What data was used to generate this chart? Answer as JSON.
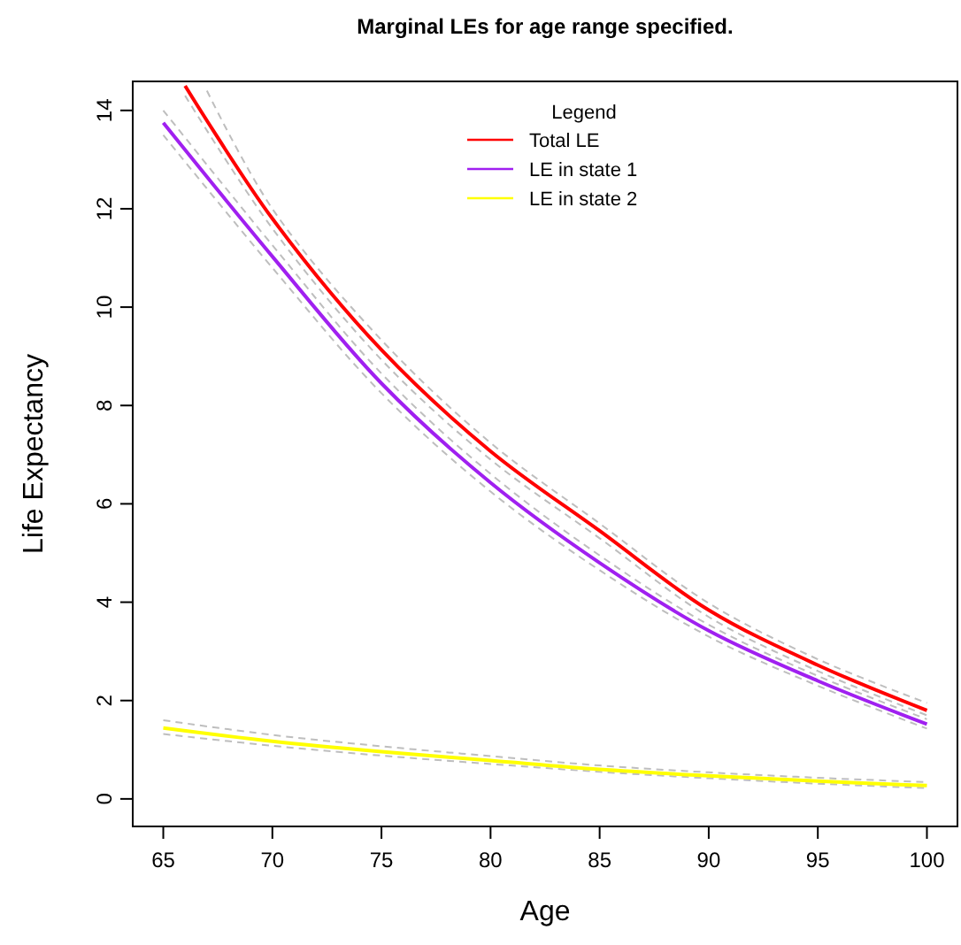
{
  "chart_data": {
    "type": "line",
    "title": "Marginal LEs for age range specified.",
    "xlabel": "Age",
    "ylabel": "Life Expectancy",
    "legend_title": "Legend",
    "legend": "top",
    "line_style": "solid",
    "xlim": [
      63.6,
      101.4
    ],
    "xticks": [
      65,
      70,
      75,
      80,
      85,
      90,
      95,
      100
    ],
    "ylim": [
      -0.56,
      14.59
    ],
    "yticks": [
      0,
      2,
      4,
      6,
      8,
      10,
      12,
      14
    ],
    "series": [
      {
        "color": "#bebebe",
        "line_style": "dashed",
        "x": [
          66,
          70,
          75,
          80,
          85,
          90,
          95,
          100
        ],
        "values": [
          14.3,
          11.6,
          8.93,
          6.9,
          5.3,
          3.7,
          2.6,
          1.7
        ]
      },
      {
        "color": "#bebebe",
        "line_style": "dashed",
        "x": [
          67,
          70,
          75,
          80,
          85,
          90,
          95,
          100
        ],
        "values": [
          14.4,
          12.0,
          9.33,
          7.24,
          5.6,
          3.98,
          2.84,
          1.95
        ]
      },
      {
        "color": "#bebebe",
        "line_style": "dashed",
        "x": [
          65,
          70,
          75,
          80,
          85,
          90,
          95,
          100
        ],
        "values": [
          13.5,
          10.8,
          8.25,
          6.25,
          4.65,
          3.3,
          2.3,
          1.43
        ]
      },
      {
        "color": "#bebebe",
        "line_style": "dashed",
        "x": [
          65,
          70,
          75,
          80,
          85,
          90,
          95,
          100
        ],
        "values": [
          14.0,
          11.26,
          8.65,
          6.61,
          4.95,
          3.54,
          2.5,
          1.62
        ]
      },
      {
        "color": "#bebebe",
        "line_style": "dashed",
        "x": [
          65,
          70,
          75,
          80,
          85,
          90,
          95,
          100
        ],
        "values": [
          1.32,
          1.08,
          0.88,
          0.71,
          0.55,
          0.42,
          0.31,
          0.22
        ]
      },
      {
        "color": "#bebebe",
        "line_style": "dashed",
        "x": [
          65,
          70,
          75,
          80,
          85,
          90,
          95,
          100
        ],
        "values": [
          1.6,
          1.3,
          1.07,
          0.87,
          0.68,
          0.54,
          0.43,
          0.34
        ]
      },
      {
        "name": "Total LE",
        "color": "#ff0000",
        "x": [
          66,
          70,
          75,
          80,
          85,
          90,
          95,
          100
        ],
        "values": [
          14.5,
          11.8,
          9.13,
          7.07,
          5.45,
          3.84,
          2.72,
          1.8
        ]
      },
      {
        "name": "LE in state 1",
        "color": "#a020f0",
        "x": [
          65,
          70,
          75,
          80,
          85,
          90,
          95,
          100
        ],
        "values": [
          13.75,
          11.03,
          8.45,
          6.43,
          4.8,
          3.42,
          2.4,
          1.52
        ]
      },
      {
        "name": "LE in state 2",
        "color": "#ffff00",
        "x": [
          65,
          70,
          75,
          80,
          85,
          90,
          95,
          100
        ],
        "values": [
          1.44,
          1.17,
          0.96,
          0.78,
          0.6,
          0.47,
          0.36,
          0.27
        ]
      }
    ]
  }
}
